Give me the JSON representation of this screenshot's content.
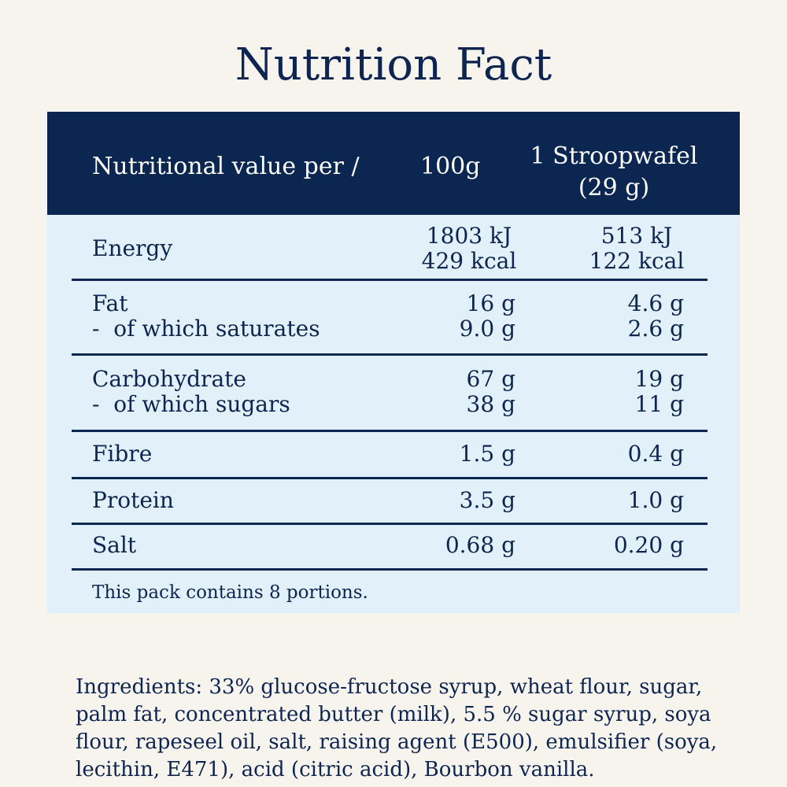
{
  "title": "Nutrition Fact",
  "table": {
    "headers": {
      "label": "Nutritional value per /",
      "col_100g": "100g",
      "col_portion_line1": "1 Stroopwafel",
      "col_portion_line2": "(29 g)"
    },
    "energy": {
      "name": "Energy",
      "v100_kj": "1803 kJ",
      "v100_kcal": "429 kcal",
      "vp_kj": "513 kJ",
      "vp_kcal": "122 kcal"
    },
    "fat": {
      "name": "Fat",
      "sub": "-  of which saturates",
      "v100": "16 g",
      "v100_sub": "9.0 g",
      "vp": "4.6 g",
      "vp_sub": "2.6 g"
    },
    "carbs": {
      "name": "Carbohydrate",
      "sub": "-  of which sugars",
      "v100": "67 g",
      "v100_sub": "38 g",
      "vp": "19 g",
      "vp_sub": "11 g"
    },
    "fibre": {
      "name": "Fibre",
      "v100": "1.5 g",
      "vp": "0.4 g"
    },
    "protein": {
      "name": "Protein",
      "v100": "3.5 g",
      "vp": "1.0 g"
    },
    "salt": {
      "name": "Salt",
      "v100": "0.68 g",
      "vp": "0.20 g"
    },
    "footnote": "This pack contains 8 portions."
  },
  "ingredients": "Ingredients: 33% glucose-fructose syrup, wheat flour, sugar, palm fat, concentrated butter (milk), 5.5 % sugar syrup, soya flour, rapeseel oil, salt, raising agent (E500), emulsifier (soya, lecithin, E471), acid (citric acid), Bourbon vanilla.",
  "colors": {
    "navy": "#0b2651",
    "table_bg": "#e2f0f9",
    "page_bg": "#f7f4ee"
  }
}
